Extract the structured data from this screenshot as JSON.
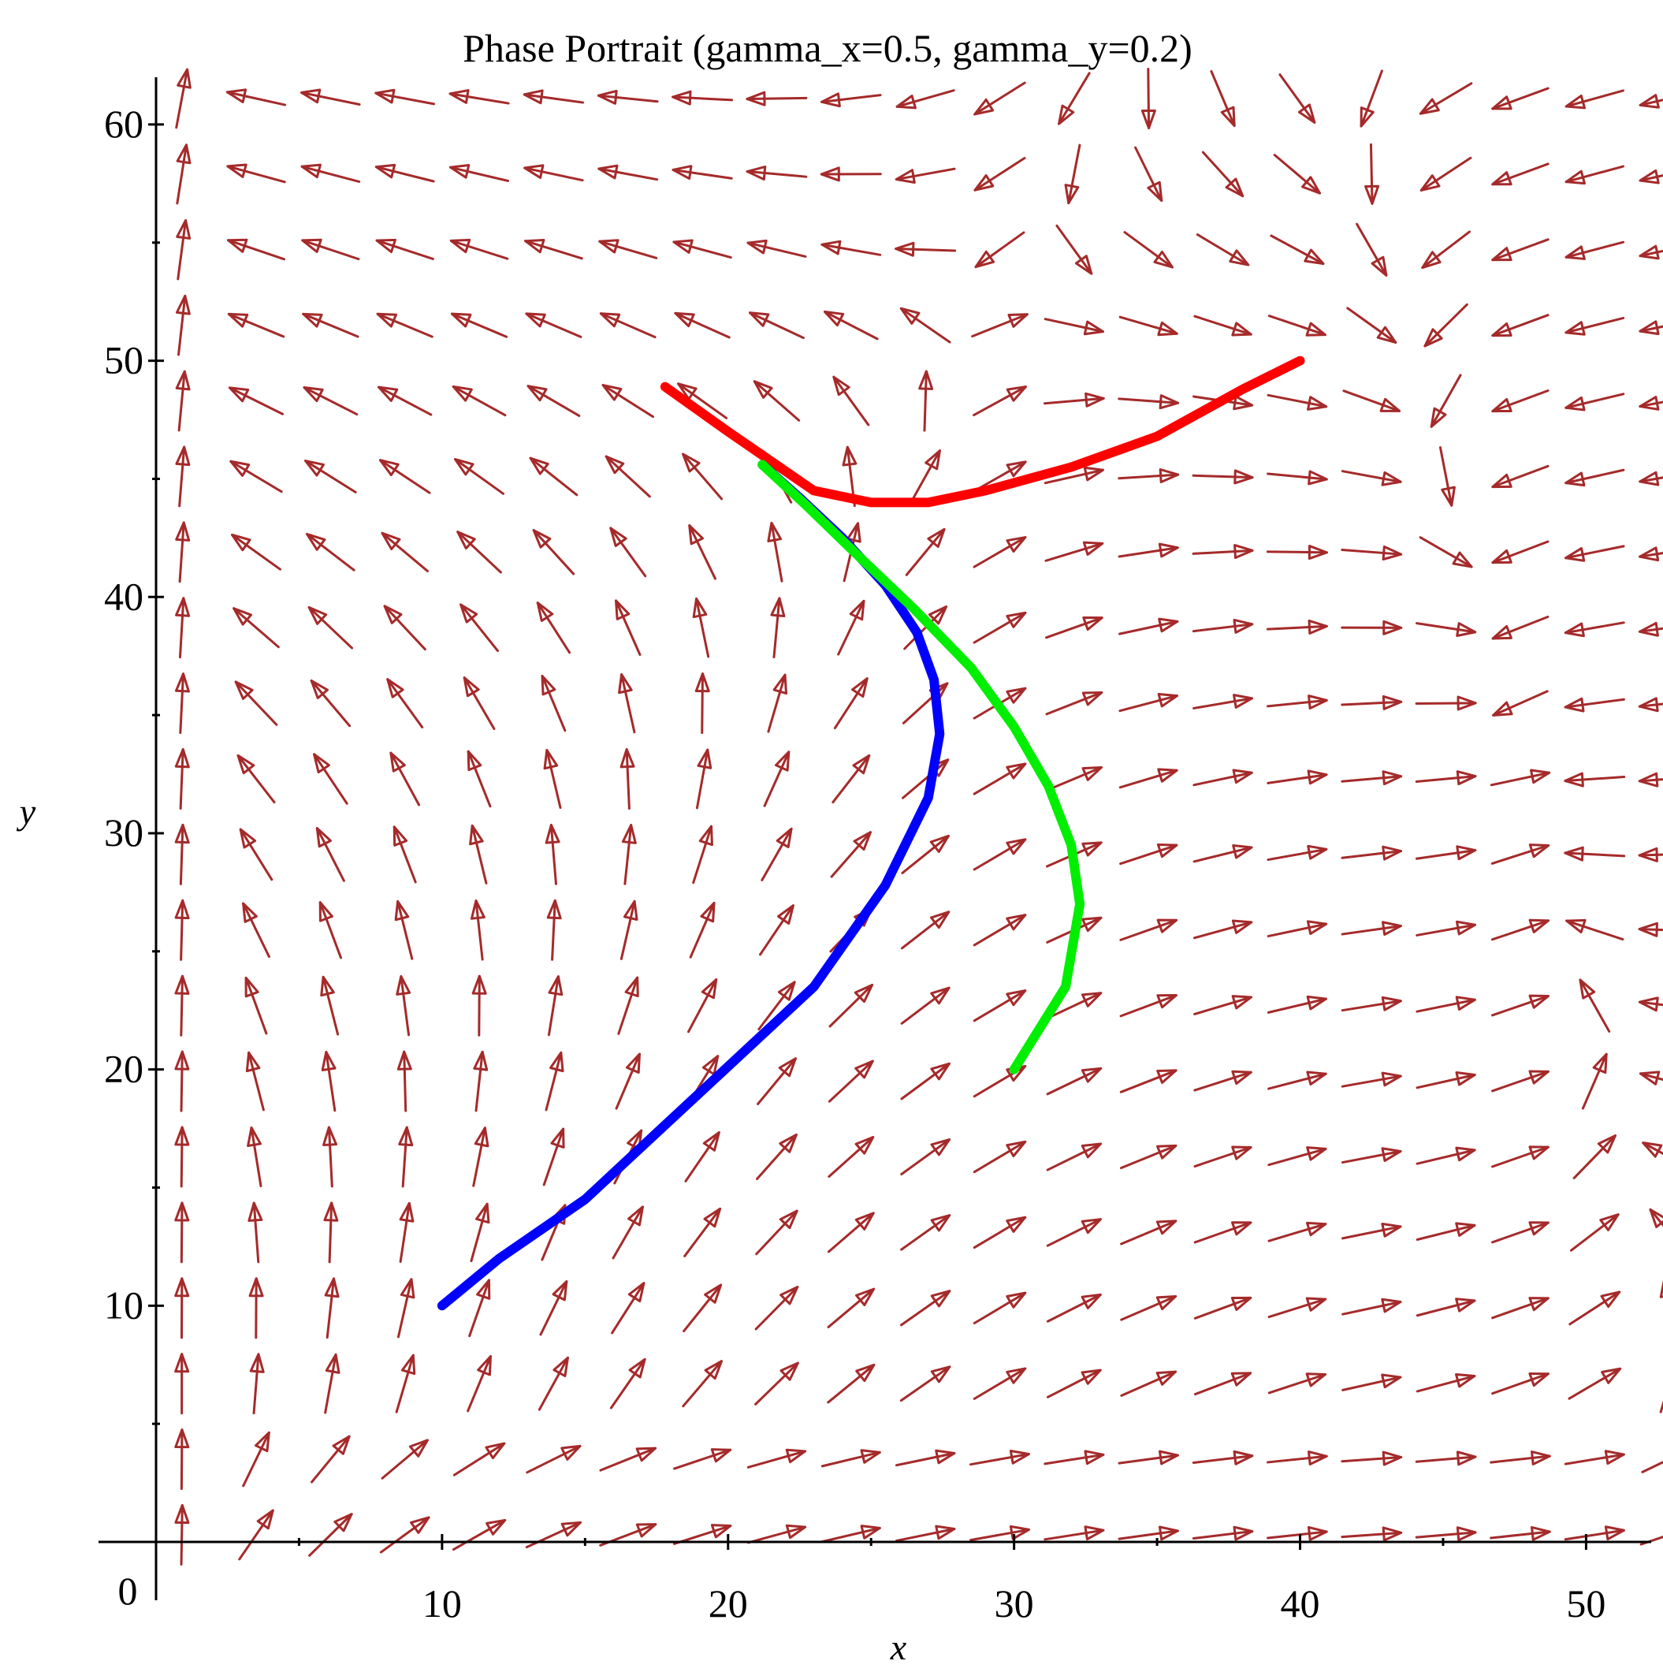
{
  "chart_data": {
    "type": "phase_portrait",
    "title": "Phase Portrait (gamma_x=0.5, gamma_y=0.2)",
    "xlabel": "x",
    "ylabel": "y",
    "xlim": [
      0,
      52
    ],
    "ylim": [
      0,
      62
    ],
    "origin_label": "0",
    "x_ticks": [
      10,
      20,
      30,
      40,
      50
    ],
    "y_ticks": [
      10,
      20,
      30,
      40,
      50,
      60
    ],
    "x_tick_labels": [
      "10",
      "20",
      "30",
      "40",
      "50"
    ],
    "y_tick_labels": [
      "10",
      "20",
      "30",
      "40",
      "50",
      "60"
    ],
    "field_color": "#a52a2a",
    "field": {
      "x_start": 0,
      "x_step": 2.6,
      "x_count": 21,
      "y_start": 0,
      "y_step": 3.2,
      "y_count": 20,
      "model": {
        "saddle": [
          24.5,
          44.5
        ],
        "sink": [
          12.5,
          53.5
        ],
        "wall_x": 40,
        "a": 0.5,
        "b": 0.2
      }
    },
    "series": [
      {
        "color": "#ff0000",
        "points": [
          [
            17.8,
            48.9
          ],
          [
            20,
            47
          ],
          [
            23,
            44.5
          ],
          [
            25,
            44
          ],
          [
            27,
            44
          ],
          [
            29,
            44.5
          ],
          [
            32,
            45.5
          ],
          [
            35,
            46.8
          ],
          [
            38,
            48.8
          ],
          [
            40,
            50
          ]
        ]
      },
      {
        "color": "#0000ff",
        "points": [
          [
            10,
            10
          ],
          [
            12,
            12
          ],
          [
            15,
            14.5
          ],
          [
            19,
            19
          ],
          [
            23,
            23.5
          ],
          [
            25.5,
            27.8
          ],
          [
            27,
            31.5
          ],
          [
            27.4,
            34.2
          ],
          [
            27.2,
            36.5
          ],
          [
            26.6,
            38.5
          ],
          [
            25.5,
            40.5
          ],
          [
            24,
            42.5
          ],
          [
            22.5,
            44.2
          ],
          [
            21.2,
            45.6
          ]
        ]
      },
      {
        "color": "#00ee00",
        "points": [
          [
            30,
            20
          ],
          [
            31.8,
            23.5
          ],
          [
            32.3,
            27
          ],
          [
            32,
            29.5
          ],
          [
            31.2,
            32
          ],
          [
            30,
            34.5
          ],
          [
            28.5,
            37
          ],
          [
            26.5,
            39.5
          ],
          [
            24.5,
            41.8
          ],
          [
            22.8,
            43.8
          ],
          [
            21.2,
            45.6
          ]
        ]
      }
    ]
  }
}
